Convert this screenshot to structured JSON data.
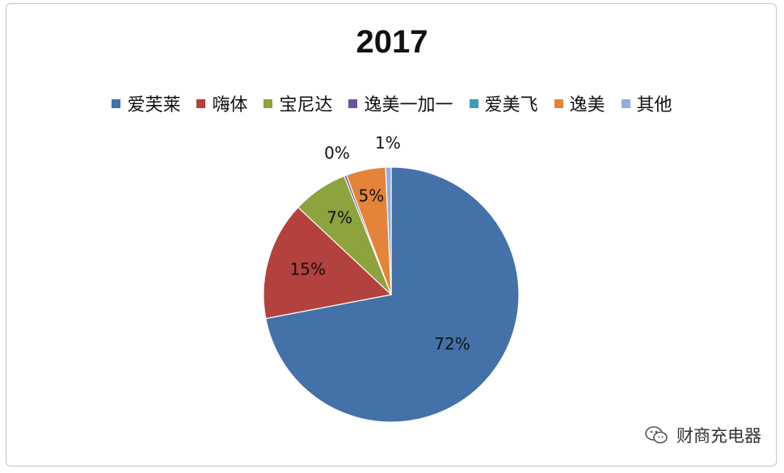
{
  "chart_data": {
    "type": "pie",
    "title": "2017",
    "legend_position": "top",
    "slices": [
      {
        "name": "爱芙莱",
        "value": 72,
        "label": "72%",
        "color": "#4472a8"
      },
      {
        "name": "嗨体",
        "value": 15,
        "label": "15%",
        "color": "#b3413d"
      },
      {
        "name": "宝尼达",
        "value": 7,
        "label": "7%",
        "color": "#8ca33e"
      },
      {
        "name": "逸美一加一",
        "value": 0.3,
        "label": "0%",
        "color": "#6a5495"
      },
      {
        "name": "爱美飞",
        "value": 0,
        "label": "",
        "color": "#3c9cba"
      },
      {
        "name": "逸美",
        "value": 5,
        "label": "5%",
        "color": "#e4843a"
      },
      {
        "name": "其他",
        "value": 0.7,
        "label": "1%",
        "color": "#92aedb"
      }
    ]
  },
  "watermark": {
    "text": "财商充电器",
    "icon": "wechat-icon"
  }
}
